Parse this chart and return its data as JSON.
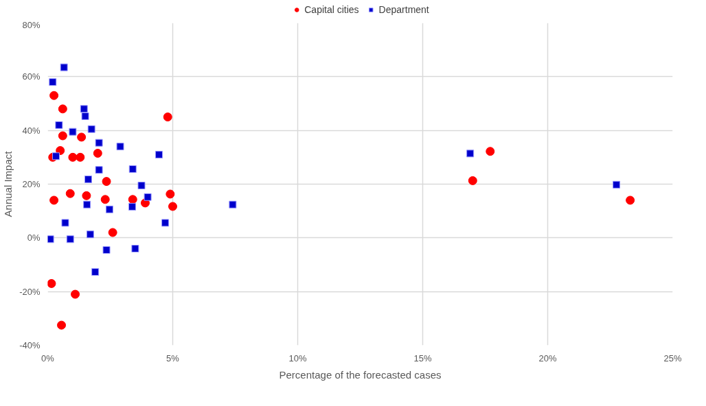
{
  "chart_data": {
    "type": "scatter",
    "xlabel": "Percentage of the forecasted cases",
    "ylabel": "Annual Impact",
    "xlim": [
      0,
      25
    ],
    "ylim": [
      -40,
      80
    ],
    "xticks": [
      {
        "value": 0,
        "label": "0%"
      },
      {
        "value": 5,
        "label": "5%"
      },
      {
        "value": 10,
        "label": "10%"
      },
      {
        "value": 15,
        "label": "15%"
      },
      {
        "value": 20,
        "label": "20%"
      },
      {
        "value": 25,
        "label": "25%"
      }
    ],
    "yticks": [
      {
        "value": -40,
        "label": "-40%"
      },
      {
        "value": -20,
        "label": "-20%"
      },
      {
        "value": 0,
        "label": "0%"
      },
      {
        "value": 20,
        "label": "20%"
      },
      {
        "value": 40,
        "label": "40%"
      },
      {
        "value": 60,
        "label": "60%"
      },
      {
        "value": 80,
        "label": "80%"
      }
    ],
    "grid": true,
    "legend": "top",
    "series": [
      {
        "name": "Capital cities",
        "color": "#ff0000",
        "marker": "circle",
        "x": [
          0.25,
          0.6,
          0.6,
          0.5,
          0.2,
          1.35,
          1.3,
          1.0,
          2.0,
          0.25,
          0.9,
          1.55,
          2.35,
          2.3,
          3.4,
          3.9,
          2.6,
          4.8,
          4.9,
          5.0,
          0.15,
          1.1,
          0.55,
          17.0,
          17.7,
          23.3
        ],
        "values": [
          53,
          48,
          38,
          32.5,
          30,
          37.5,
          30,
          30,
          31.5,
          14,
          16.5,
          15.7,
          21,
          14.3,
          14.3,
          13,
          2,
          45,
          16.3,
          11.7,
          -17,
          -21,
          -32.5,
          21.3,
          32.2,
          14
        ]
      },
      {
        "name": "Department",
        "color": "#0000cc",
        "marker": "square",
        "x": [
          0.2,
          0.65,
          0.45,
          1.45,
          1.5,
          1.75,
          1.0,
          0.33,
          2.05,
          2.9,
          4.45,
          2.05,
          1.62,
          3.4,
          3.75,
          4.0,
          1.57,
          2.47,
          3.38,
          0.7,
          4.7,
          7.4,
          0.1,
          0.9,
          1.7,
          2.35,
          3.5,
          1.9,
          16.9,
          22.75
        ],
        "values": [
          58,
          63.5,
          42,
          48,
          45.3,
          40.5,
          39.5,
          30.4,
          35.4,
          34,
          31,
          25.3,
          21.8,
          25.6,
          19.5,
          15.2,
          12.4,
          10.6,
          11.6,
          5.6,
          5.6,
          12.4,
          -0.5,
          -0.5,
          1.3,
          -4.5,
          -4,
          -12.7,
          31.4,
          19.8
        ]
      }
    ]
  }
}
